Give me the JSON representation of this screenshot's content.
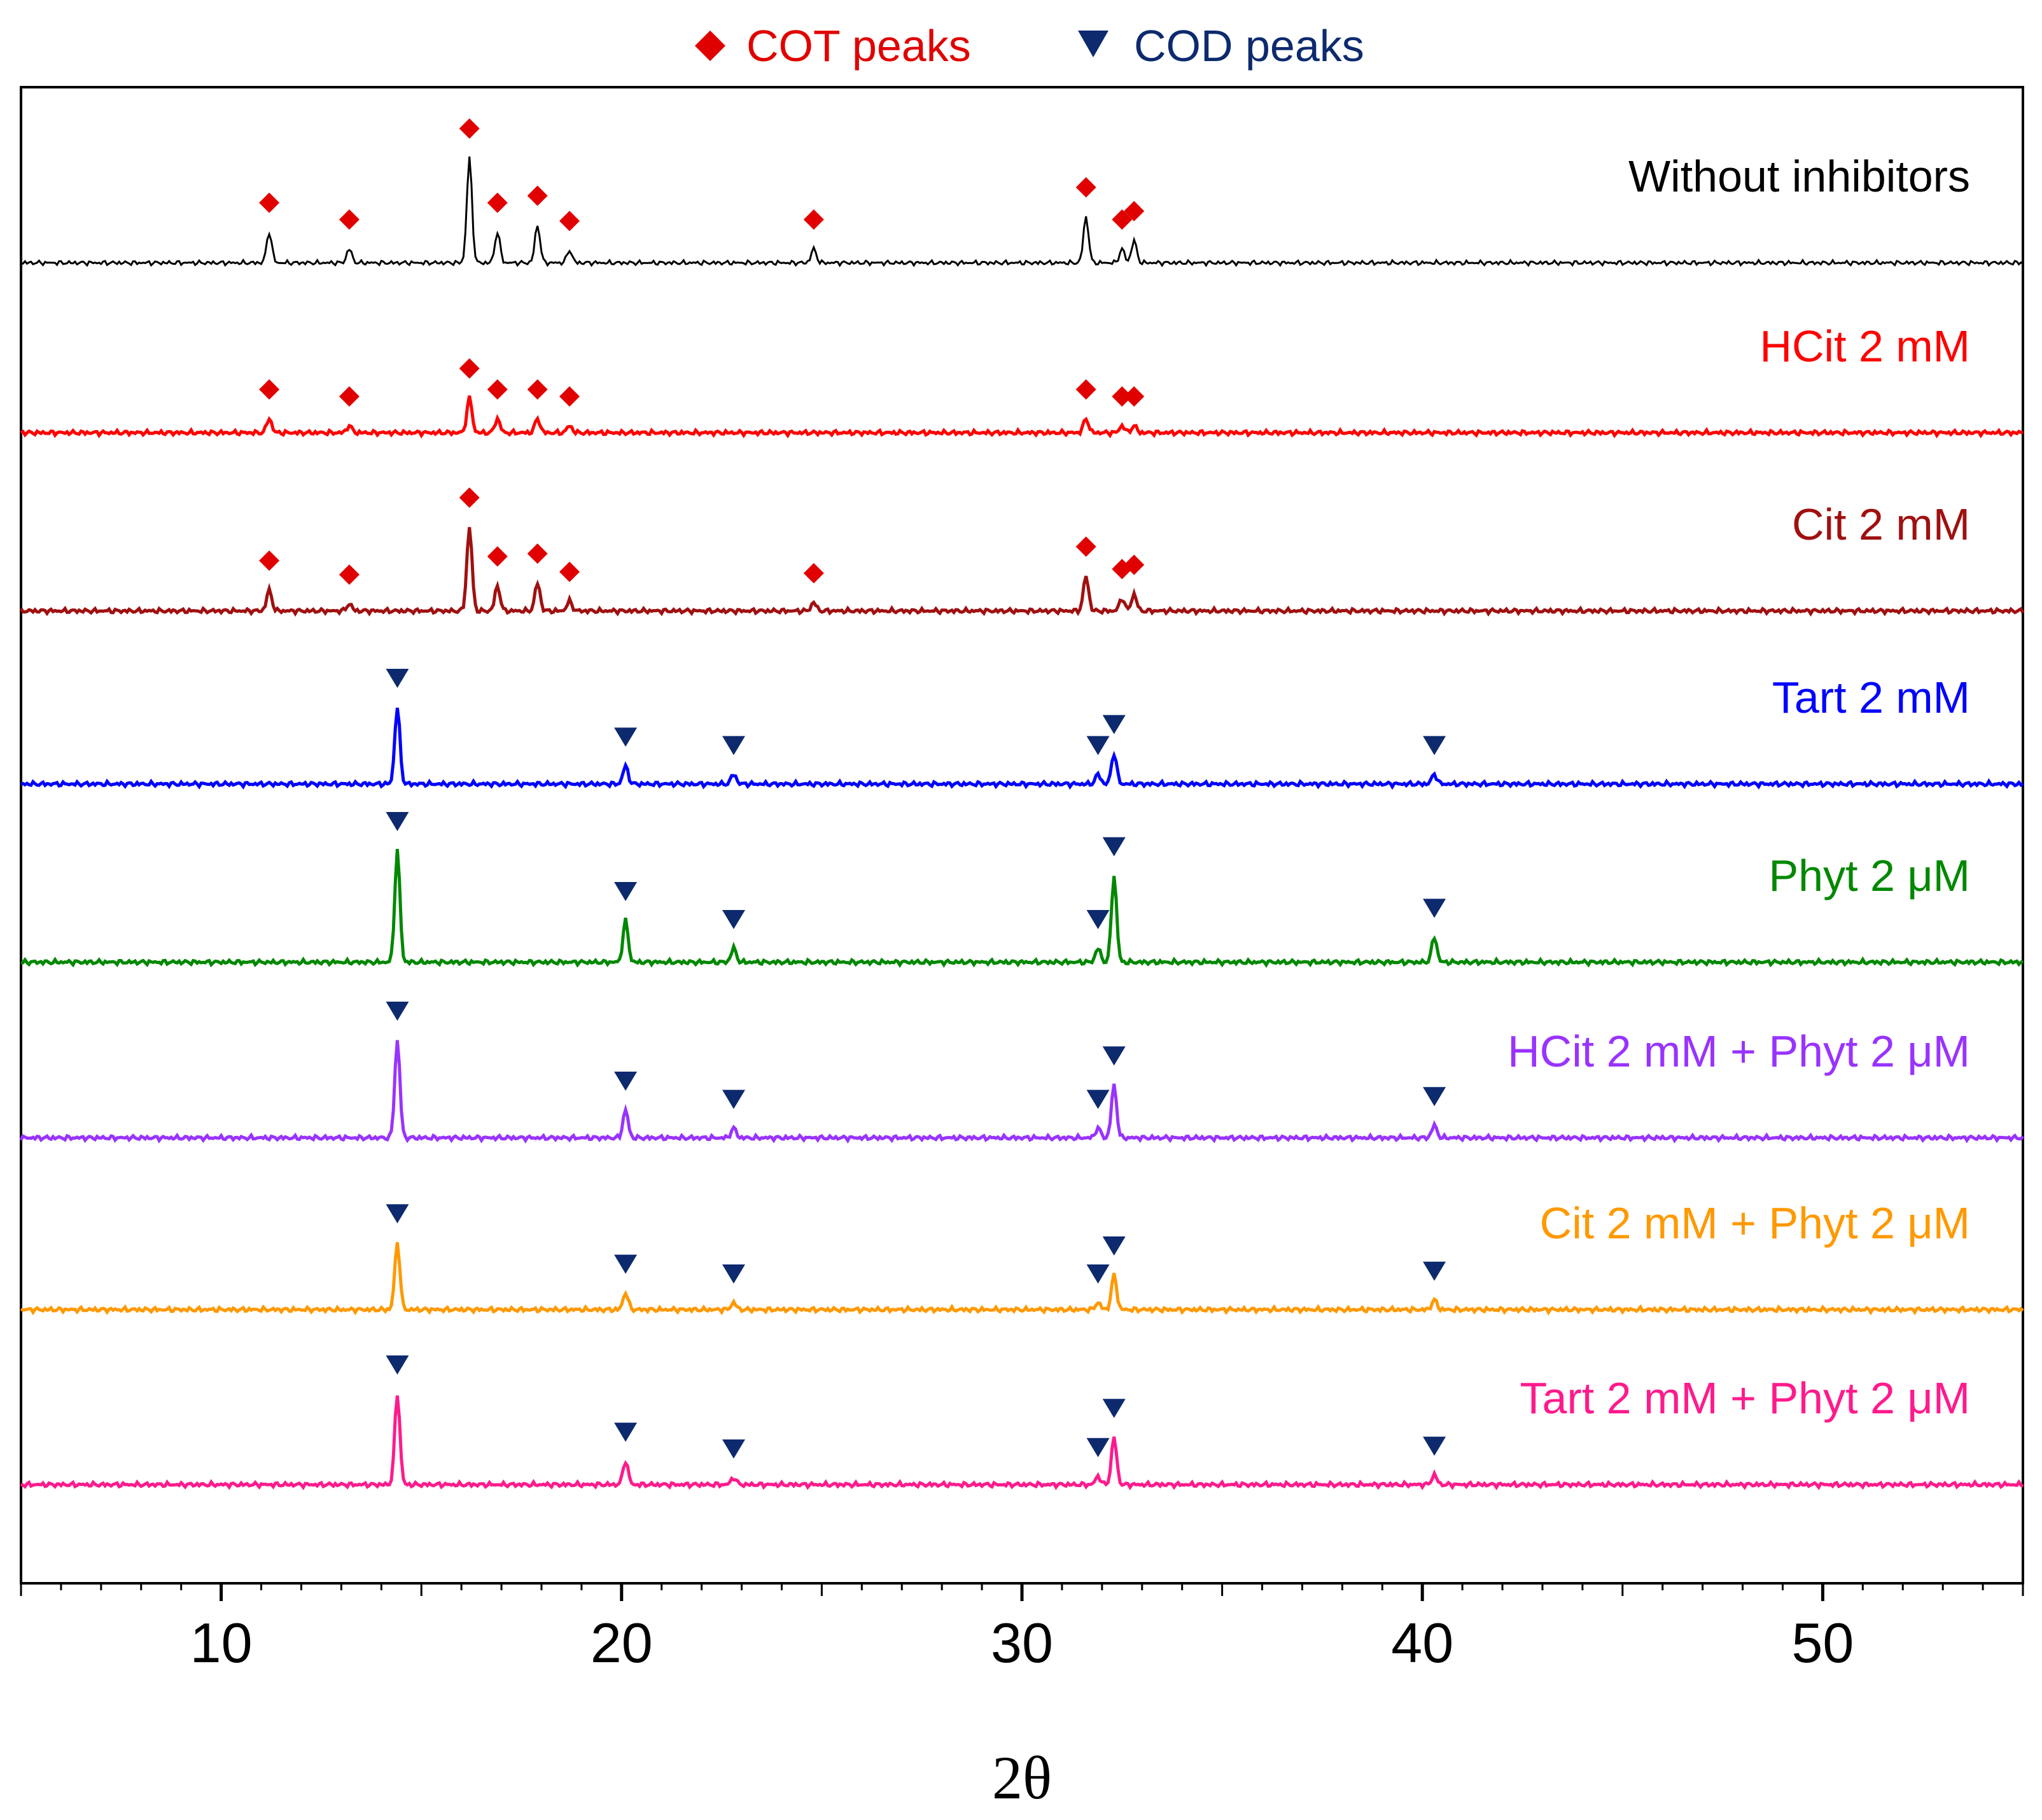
{
  "chart_data": {
    "type": "line",
    "title": "",
    "xlabel": "2θ",
    "ylabel": "",
    "xlim": [
      5,
      55
    ],
    "xticks": [
      10,
      20,
      30,
      40,
      50
    ],
    "grid": false,
    "legend": [
      {
        "name": "COT peaks",
        "marker": "diamond",
        "color": "#e00000"
      },
      {
        "name": "COD peaks",
        "marker": "triangle-down",
        "color": "#0d2a6e"
      }
    ],
    "series": [
      {
        "name": "Without inhibitors",
        "color": "#000000",
        "marker": "diamond",
        "peaks": [
          [
            11.2,
            0.22
          ],
          [
            13.2,
            0.1
          ],
          [
            16.2,
            0.75
          ],
          [
            16.9,
            0.22
          ],
          [
            17.9,
            0.27
          ],
          [
            18.7,
            0.09
          ],
          [
            24.8,
            0.1
          ],
          [
            31.6,
            0.33
          ],
          [
            32.5,
            0.1
          ],
          [
            32.8,
            0.16
          ]
        ]
      },
      {
        "name": "HCit 2 mM",
        "color": "#ff0000",
        "marker": "diamond",
        "peaks": [
          [
            11.2,
            0.1
          ],
          [
            13.2,
            0.05
          ],
          [
            16.2,
            0.25
          ],
          [
            16.9,
            0.1
          ],
          [
            17.9,
            0.1
          ],
          [
            18.7,
            0.05
          ],
          [
            31.6,
            0.1
          ],
          [
            32.5,
            0.05
          ],
          [
            32.8,
            0.05
          ]
        ]
      },
      {
        "name": "Cit 2 mM",
        "color": "#a01010",
        "marker": "diamond",
        "peaks": [
          [
            11.2,
            0.15
          ],
          [
            13.2,
            0.05
          ],
          [
            16.2,
            0.6
          ],
          [
            16.9,
            0.18
          ],
          [
            17.9,
            0.2
          ],
          [
            18.7,
            0.07
          ],
          [
            24.8,
            0.06
          ],
          [
            31.6,
            0.25
          ],
          [
            32.5,
            0.09
          ],
          [
            32.8,
            0.12
          ]
        ]
      },
      {
        "name": "Tart 2 mM",
        "color": "#0000ff",
        "marker": "triangle-down",
        "peaks": [
          [
            14.4,
            0.55
          ],
          [
            20.1,
            0.13
          ],
          [
            22.8,
            0.07
          ],
          [
            31.9,
            0.07
          ],
          [
            32.3,
            0.22
          ],
          [
            40.3,
            0.07
          ]
        ]
      },
      {
        "name": "Phyt 2 μM",
        "color": "#008800",
        "marker": "triangle-down",
        "peaks": [
          [
            14.4,
            0.8
          ],
          [
            20.1,
            0.3
          ],
          [
            22.8,
            0.1
          ],
          [
            31.9,
            0.1
          ],
          [
            32.3,
            0.62
          ],
          [
            40.3,
            0.18
          ]
        ]
      },
      {
        "name": "HCit 2 mM + Phyt 2 μM",
        "color": "#9933ff",
        "marker": "triangle-down",
        "peaks": [
          [
            14.4,
            0.7
          ],
          [
            20.1,
            0.2
          ],
          [
            22.8,
            0.07
          ],
          [
            31.9,
            0.07
          ],
          [
            32.3,
            0.38
          ],
          [
            40.3,
            0.09
          ]
        ]
      },
      {
        "name": "Cit 2 mM + Phyt 2 μM",
        "color": "#ff9900",
        "marker": "triangle-down",
        "peaks": [
          [
            14.4,
            0.48
          ],
          [
            20.1,
            0.12
          ],
          [
            22.8,
            0.05
          ],
          [
            31.9,
            0.05
          ],
          [
            32.3,
            0.25
          ],
          [
            40.3,
            0.07
          ]
        ]
      },
      {
        "name": "Tart 2 mM + Phyt 2 μM",
        "color": "#ff1a8c",
        "marker": "triangle-down",
        "peaks": [
          [
            14.4,
            0.65
          ],
          [
            20.1,
            0.17
          ],
          [
            22.8,
            0.05
          ],
          [
            31.9,
            0.06
          ],
          [
            32.3,
            0.34
          ],
          [
            40.3,
            0.07
          ]
        ]
      }
    ]
  }
}
